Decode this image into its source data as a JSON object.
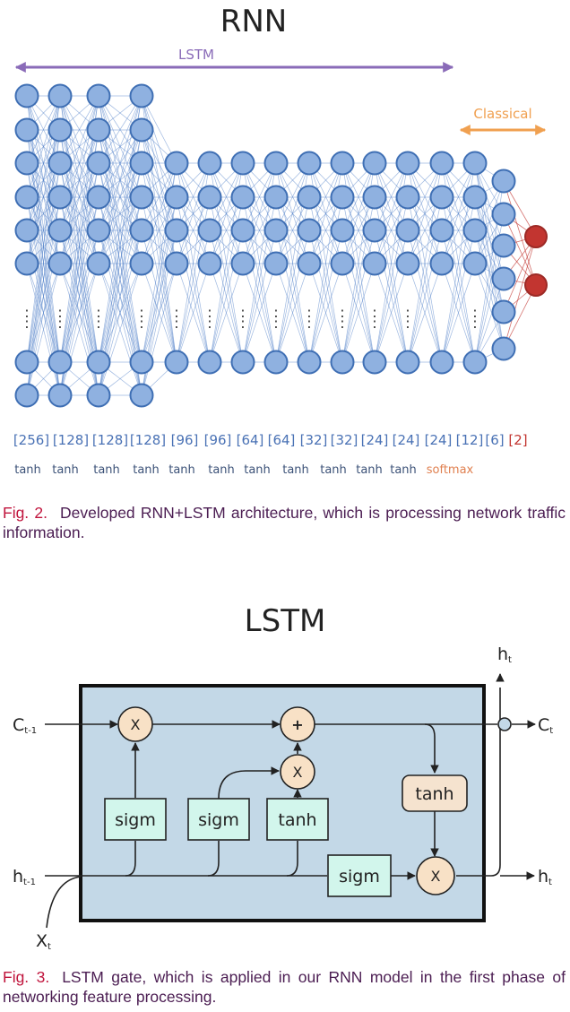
{
  "rnn": {
    "title": "RNN",
    "lstm_label": "LSTM",
    "classical_label": "Classical",
    "dots": ":",
    "colors": {
      "node_fill": "#8fb1e0",
      "node_stroke": "#3f6fb4",
      "edge": "#4f7fc8",
      "output_fill": "#c23530",
      "output_stroke": "#9d2a26",
      "lstm_arrow": "#8a6bb8",
      "classical_arrow": "#f0a050",
      "size_text": "#4a72b5",
      "act_text": "#3c5278",
      "softmax": "#e08050"
    },
    "layer_sizes": [
      "[256]",
      "[128]",
      "[128]",
      "[128]",
      "[96]",
      "[96]",
      "[64]",
      "[64]",
      "[32]",
      "[32]",
      "[24]",
      "[24]",
      "[24]",
      "[12]",
      "[6]",
      "[2]"
    ],
    "activations": [
      "tanh",
      "tanh",
      "tanh",
      "tanh",
      "tanh",
      "tanh",
      "tanh",
      "tanh",
      "tanh",
      "tanh",
      "tanh",
      "softmax"
    ]
  },
  "fig2": {
    "label": "Fig. 2.",
    "text": "Developed RNN+LSTM architecture, which is processing network traffic information."
  },
  "lstm": {
    "title": "LSTM",
    "c_prev": "C",
    "c_prev_sub": "t-1",
    "h_prev": "h",
    "h_prev_sub": "t-1",
    "x_in": "X",
    "x_in_sub": "t",
    "c_out": "C",
    "c_out_sub": "t",
    "h_out_right": "h",
    "h_out_right_sub": "t",
    "h_out_top": "h",
    "h_out_top_sub": "t",
    "ops": {
      "mult": "X",
      "add": "+"
    },
    "gates": {
      "sigm": "sigm",
      "tanh": "tanh"
    },
    "colors": {
      "cell_fill": "#c3d8e7",
      "gate_fill": "#d2f6ec",
      "op_fill": "#f8e1c6",
      "tanh_out_fill": "#f5e3cf",
      "stroke": "#222222"
    }
  },
  "fig3": {
    "label": "Fig. 3.",
    "text": "LSTM gate, which is applied in our RNN model in the first phase of networking feature processing."
  }
}
